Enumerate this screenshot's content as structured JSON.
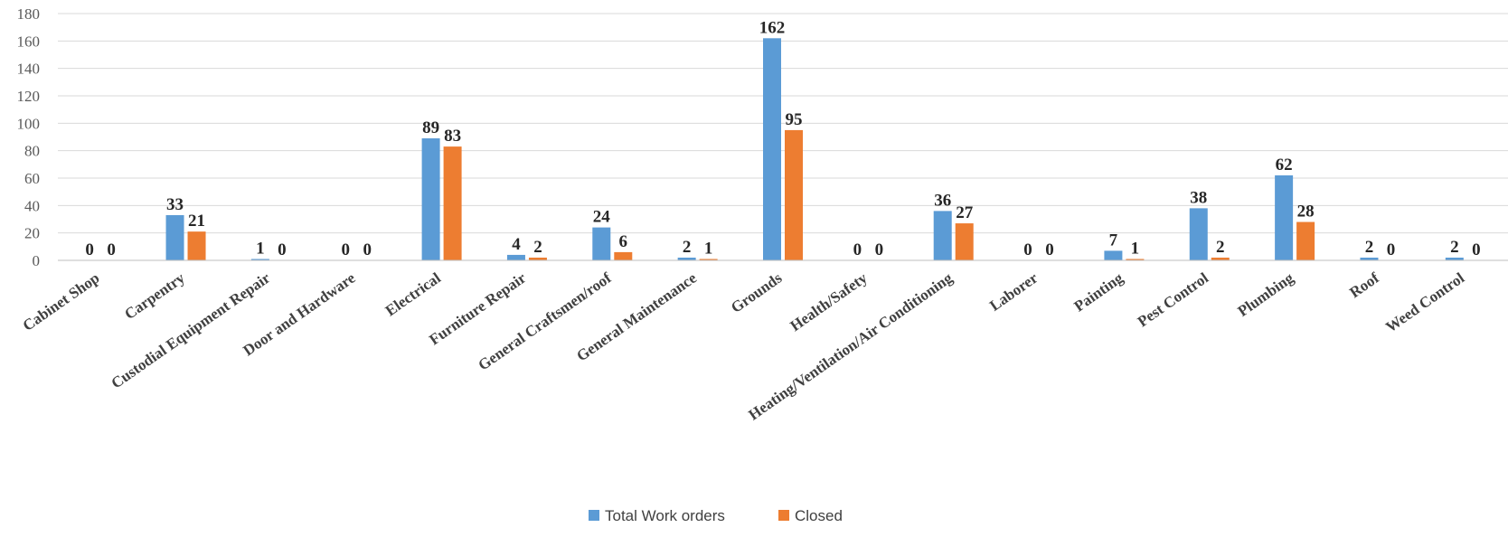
{
  "chart_data": {
    "type": "bar",
    "categories": [
      "Cabinet Shop",
      "Carpentry",
      "Custodial Equipment Repair",
      "Door and Hardware",
      "Electrical",
      "Furniture Repair",
      "General Craftsmen/roof",
      "General Maintenance",
      "Grounds",
      "Health/Safety",
      "Heating/Ventilation/Air Conditioning",
      "Laborer",
      "Painting",
      "Pest Control",
      "Plumbing",
      "Roof",
      "Weed Control"
    ],
    "series": [
      {
        "name": "Total Work orders",
        "color": "#5B9BD5",
        "values": [
          0,
          33,
          1,
          0,
          89,
          4,
          24,
          2,
          162,
          0,
          36,
          0,
          7,
          38,
          62,
          2,
          2
        ]
      },
      {
        "name": "Closed",
        "color": "#ED7D31",
        "values": [
          0,
          21,
          0,
          0,
          83,
          2,
          6,
          1,
          95,
          0,
          27,
          0,
          1,
          2,
          28,
          0,
          0
        ]
      }
    ],
    "ylim": [
      0,
      180
    ],
    "yticks": [
      0,
      20,
      40,
      60,
      80,
      100,
      120,
      140,
      160,
      180
    ],
    "grid": true,
    "data_labels": true,
    "legend_position": "bottom"
  },
  "colors": {
    "gridline": "#D9D9D9",
    "axis": "#BFBFBF"
  }
}
